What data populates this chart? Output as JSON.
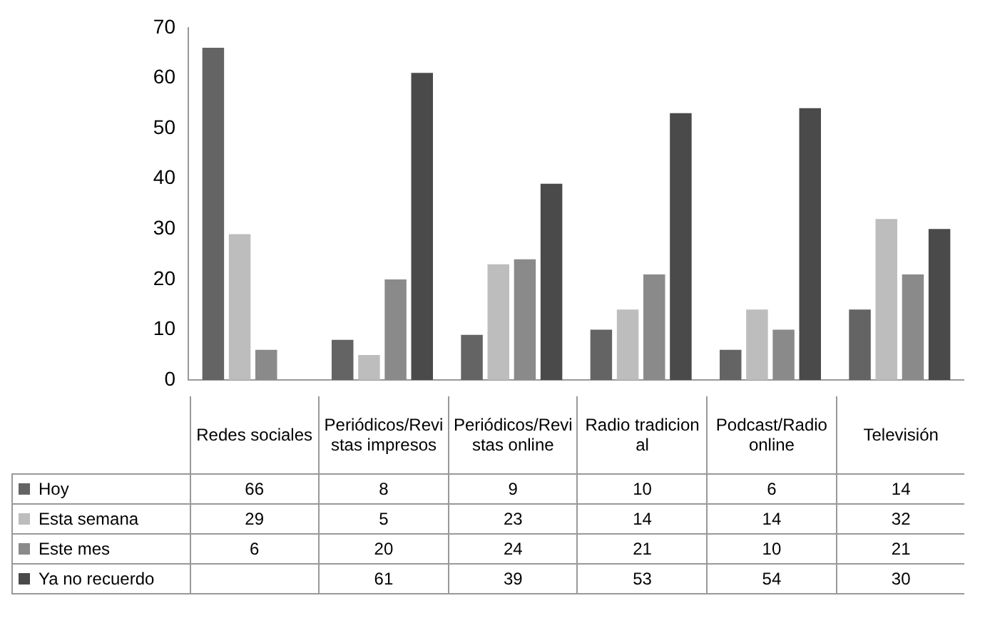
{
  "chart_data": {
    "type": "bar",
    "categories": [
      "Redes sociales",
      "Periódicos/Revistas impresos",
      "Periódicos/Revistas online",
      "Radio tradicional",
      "Podcast/Radio online",
      "Televisión"
    ],
    "series": [
      {
        "name": "Hoy",
        "color": "#646464",
        "values": [
          66,
          8,
          9,
          10,
          6,
          14
        ]
      },
      {
        "name": "Esta semana",
        "color": "#bdbdbd",
        "values": [
          29,
          5,
          23,
          14,
          14,
          32
        ]
      },
      {
        "name": "Este mes",
        "color": "#8a8a8a",
        "values": [
          6,
          20,
          24,
          21,
          10,
          21
        ]
      },
      {
        "name": "Ya no recuerdo",
        "color": "#4a4a4a",
        "values": [
          null,
          61,
          39,
          53,
          54,
          30
        ]
      }
    ],
    "ylim": [
      0,
      70
    ],
    "yticks": [
      0,
      10,
      20,
      30,
      40,
      50,
      60,
      70
    ],
    "grid": false,
    "legend": "bottom left",
    "data_labels": true
  }
}
